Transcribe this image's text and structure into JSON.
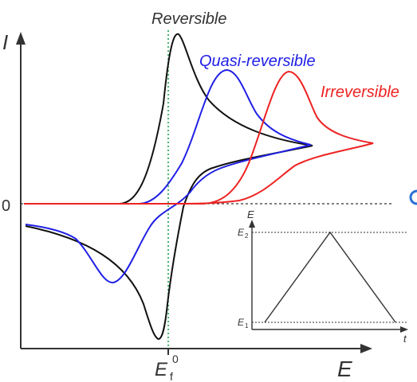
{
  "figure": {
    "axis_y_label": "I",
    "axis_x_label_main": "E",
    "zero_label": "0",
    "ef_label": "E",
    "ef_sub": "f",
    "ef_sup": "0",
    "colors": {
      "axis": "#333333",
      "reversible": "#111111",
      "quasi": "#2020e6",
      "irreversible": "#ee2222",
      "ef_line": "#1aa34a",
      "zero_line": "#333333"
    }
  },
  "labels": {
    "reversible": "Reversible",
    "quasi": "Quasi-reversible",
    "irreversible": "Irreversible"
  },
  "inset": {
    "y_label": "E",
    "x_label": "t",
    "e2_main": "E",
    "e2_sub": "2",
    "e1_main": "E",
    "e1_sub": "1"
  },
  "chart_data": {
    "type": "line",
    "series": [
      {
        "name": "Reversible"
      },
      {
        "name": "Quasi-reversible"
      },
      {
        "name": "Irreversible"
      }
    ],
    "xlabel": "E",
    "ylabel": "I"
  }
}
